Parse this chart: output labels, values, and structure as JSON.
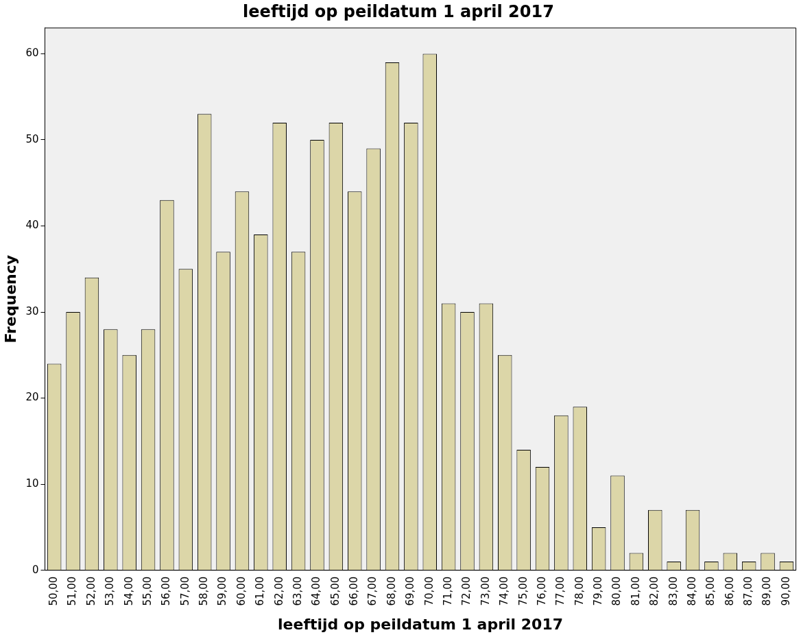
{
  "chart_data": {
    "type": "bar",
    "title": "leeftijd op peildatum 1 april 2017",
    "xlabel": "leeftijd op peildatum 1 april 2017",
    "ylabel": "Frequency",
    "categories": [
      "50,00",
      "51,00",
      "52,00",
      "53,00",
      "54,00",
      "55,00",
      "56,00",
      "57,00",
      "58,00",
      "59,00",
      "60,00",
      "61,00",
      "62,00",
      "63,00",
      "64,00",
      "65,00",
      "66,00",
      "67,00",
      "68,00",
      "69,00",
      "70,00",
      "71,00",
      "72,00",
      "73,00",
      "74,00",
      "75,00",
      "76,00",
      "77,00",
      "78,00",
      "79,00",
      "80,00",
      "81,00",
      "82,00",
      "83,00",
      "84,00",
      "85,00",
      "86,00",
      "87,00",
      "89,00",
      "90,00"
    ],
    "values": [
      24,
      30,
      34,
      28,
      25,
      28,
      43,
      35,
      53,
      37,
      44,
      39,
      52,
      37,
      50,
      52,
      44,
      49,
      59,
      52,
      60,
      31,
      30,
      31,
      25,
      14,
      12,
      18,
      19,
      5,
      11,
      2,
      7,
      1,
      7,
      1,
      2,
      1,
      2,
      1
    ],
    "color": "#dcd6a8",
    "ylim": [
      0,
      63
    ],
    "yticks": [
      0,
      10,
      20,
      30,
      40,
      50,
      60
    ],
    "grid": false,
    "legend": false
  }
}
